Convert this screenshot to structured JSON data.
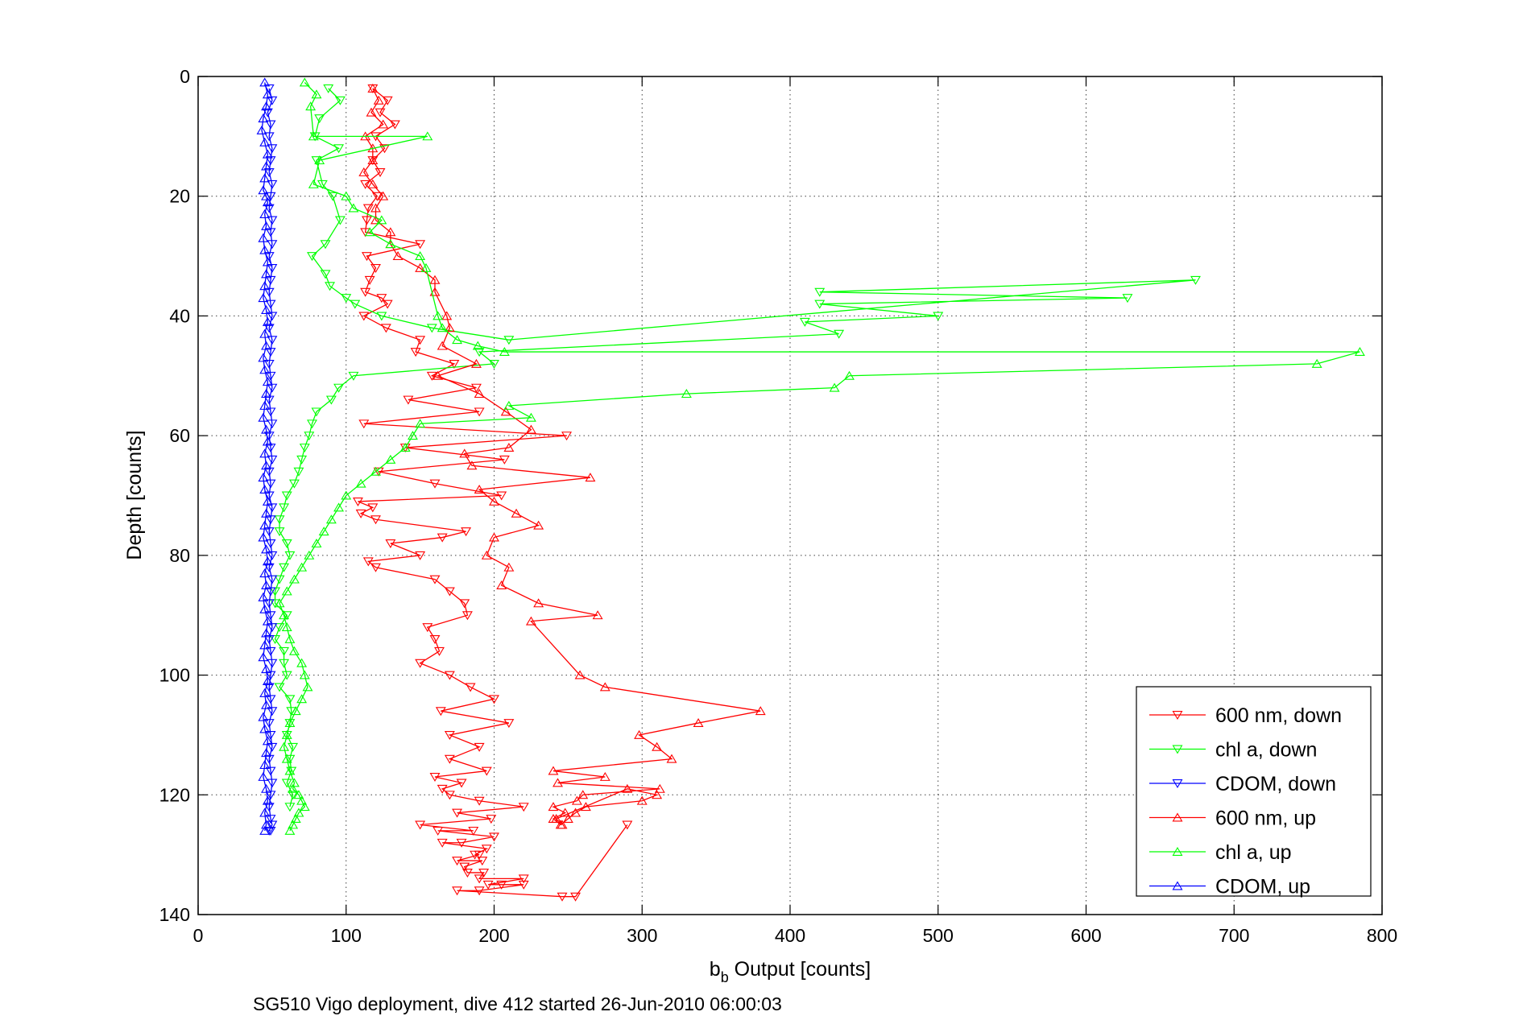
{
  "chart_data": {
    "type": "line",
    "xlabel_main": "b",
    "xlabel_sub": "b",
    "xlabel_rest": " Output [counts]",
    "ylabel": "Depth [counts]",
    "caption": "SG510 Vigo deployment, dive 412 started 26-Jun-2010 06:00:03",
    "xlim": [
      0,
      800
    ],
    "ylim": [
      0,
      140
    ],
    "y_reversed": true,
    "grid": true,
    "legend_position": "bottom-right",
    "x_ticks": [
      "0",
      "100",
      "200",
      "300",
      "400",
      "500",
      "600",
      "700",
      "800"
    ],
    "y_ticks": [
      "0",
      "20",
      "40",
      "60",
      "80",
      "100",
      "120",
      "140"
    ],
    "series": [
      {
        "name": "600 nm, down",
        "color": "#ff0000",
        "marker": "triangle-down",
        "x": [
          118,
          128,
          123,
          133,
          120,
          126,
          118,
          123,
          113,
          121,
          115,
          114,
          113,
          150,
          114,
          120,
          116,
          113,
          124,
          128,
          112,
          127,
          150,
          147,
          173,
          158,
          188,
          142,
          190,
          112,
          249,
          140,
          207,
          122,
          160,
          205,
          108,
          118,
          110,
          120,
          181,
          165,
          130,
          150,
          115,
          120,
          160,
          170,
          180,
          182,
          155,
          160,
          163,
          150,
          170,
          184,
          200,
          164,
          210,
          170,
          190,
          170,
          195,
          160,
          178,
          165,
          170,
          190,
          220,
          175,
          198,
          150,
          186,
          162,
          200,
          178,
          165,
          195,
          187,
          190,
          175,
          192,
          180,
          180,
          182,
          193,
          190,
          220,
          196,
          205,
          220,
          190,
          175,
          246,
          255,
          290
        ],
        "y": [
          2,
          4,
          6,
          8,
          10,
          12,
          14,
          16,
          18,
          20,
          22,
          24,
          26,
          28,
          30,
          32,
          34,
          36,
          37,
          38,
          40,
          42,
          44,
          46,
          48,
          50,
          52,
          54,
          56,
          58,
          60,
          62,
          64,
          66,
          68,
          70,
          71,
          72,
          73,
          74,
          76,
          77,
          78,
          80,
          81,
          82,
          84,
          86,
          88,
          90,
          92,
          94,
          96,
          98,
          100,
          102,
          104,
          106,
          108,
          110,
          112,
          114,
          116,
          117,
          118,
          119,
          120,
          121,
          122,
          123,
          124,
          125,
          126,
          126,
          127,
          128,
          128,
          129,
          130,
          130,
          131,
          131,
          132,
          132,
          133,
          133,
          134,
          134,
          135,
          135,
          135,
          136,
          136,
          137,
          137,
          125
        ]
      },
      {
        "name": "chl a, down",
        "color": "#00ff00",
        "marker": "triangle-down",
        "x": [
          88,
          96,
          82,
          79,
          95,
          80,
          84,
          91,
          96,
          86,
          77,
          86,
          89,
          100,
          106,
          124,
          158,
          210,
          674,
          420,
          628,
          420,
          500,
          410,
          433,
          190,
          200,
          105,
          95,
          90,
          80,
          77,
          75,
          72,
          70,
          68,
          65,
          60,
          58,
          55,
          55,
          60,
          62,
          58,
          55,
          52,
          52,
          60,
          55,
          52,
          58,
          58,
          60,
          55,
          62,
          63,
          62,
          60,
          64,
          62,
          63,
          60,
          64,
          62
        ],
        "y": [
          2,
          4,
          7,
          10,
          12,
          14,
          18,
          20,
          24,
          28,
          30,
          33,
          35,
          37,
          38,
          40,
          42,
          44,
          34,
          36,
          37,
          38,
          40,
          41,
          43,
          46,
          48,
          50,
          52,
          54,
          56,
          58,
          60,
          62,
          64,
          66,
          68,
          70,
          72,
          74,
          76,
          78,
          80,
          82,
          84,
          86,
          88,
          90,
          92,
          94,
          96,
          98,
          100,
          102,
          104,
          106,
          108,
          110,
          112,
          114,
          116,
          118,
          120,
          122
        ]
      },
      {
        "name": "CDOM, down",
        "color": "#0000ff",
        "marker": "triangle-down",
        "x": [
          48,
          50,
          47,
          49,
          48,
          50,
          49,
          48,
          50,
          49,
          48,
          50,
          49,
          50,
          48,
          50,
          49,
          48,
          49,
          50,
          48,
          50,
          49,
          48,
          49,
          50,
          48,
          49,
          50,
          48,
          49,
          50,
          48,
          49,
          48,
          50,
          49,
          48,
          49,
          50,
          48,
          50,
          49,
          48,
          49,
          50,
          48,
          49,
          50,
          49,
          48,
          49,
          50,
          48,
          49,
          50,
          48,
          49,
          50,
          49,
          48,
          49,
          50,
          48,
          49
        ],
        "y": [
          2,
          4,
          6,
          8,
          10,
          12,
          14,
          16,
          18,
          20,
          22,
          24,
          26,
          28,
          30,
          32,
          34,
          36,
          38,
          40,
          42,
          44,
          46,
          48,
          50,
          52,
          54,
          56,
          58,
          60,
          62,
          64,
          66,
          68,
          70,
          72,
          74,
          76,
          78,
          80,
          82,
          84,
          86,
          88,
          90,
          92,
          94,
          96,
          98,
          100,
          102,
          104,
          106,
          108,
          110,
          112,
          114,
          116,
          118,
          120,
          122,
          124,
          125,
          126,
          126
        ]
      },
      {
        "name": "600 nm, up",
        "color": "#ff0000",
        "marker": "triangle-up",
        "x": [
          118,
          122,
          117,
          125,
          113,
          118,
          118,
          112,
          118,
          125,
          120,
          120,
          130,
          130,
          135,
          150,
          160,
          160,
          168,
          170,
          165,
          188,
          162,
          190,
          208,
          225,
          210,
          180,
          185,
          265,
          190,
          200,
          215,
          230,
          200,
          195,
          210,
          205,
          230,
          270,
          225,
          258,
          275,
          380,
          338,
          298,
          310,
          320,
          240,
          275,
          243,
          312,
          260,
          256,
          240,
          248,
          240,
          245,
          250,
          255,
          262,
          300,
          310,
          290,
          242,
          246
        ],
        "y": [
          2,
          4,
          6,
          8,
          10,
          12,
          14,
          16,
          18,
          20,
          22,
          24,
          26,
          28,
          30,
          32,
          34,
          36,
          40,
          42,
          45,
          48,
          50,
          53,
          56,
          59,
          62,
          63,
          65,
          67,
          69,
          71,
          73,
          75,
          77,
          80,
          82,
          85,
          88,
          90,
          91,
          100,
          102,
          106,
          108,
          110,
          112,
          114,
          116,
          117,
          118,
          119,
          120,
          121,
          122,
          123,
          124,
          125,
          124,
          123,
          122,
          121,
          120,
          119,
          124,
          125
        ]
      },
      {
        "name": "chl a, up",
        "color": "#00ff00",
        "marker": "triangle-up",
        "x": [
          72,
          80,
          76,
          78,
          155,
          82,
          78,
          100,
          105,
          124,
          116,
          130,
          150,
          154,
          162,
          165,
          175,
          189,
          207,
          785,
          756,
          440,
          430,
          330,
          210,
          225,
          150,
          145,
          140,
          130,
          120,
          110,
          100,
          95,
          90,
          85,
          80,
          75,
          70,
          65,
          60,
          55,
          58,
          60,
          62,
          65,
          70,
          72,
          74,
          70,
          66,
          62,
          60,
          58,
          60,
          62,
          65,
          64,
          68,
          70,
          72,
          68,
          66,
          64,
          62
        ],
        "y": [
          1,
          3,
          5,
          10,
          10,
          14,
          18,
          20,
          22,
          24,
          26,
          28,
          30,
          32,
          40,
          42,
          44,
          45,
          46,
          46,
          48,
          50,
          52,
          53,
          55,
          57,
          58,
          60,
          62,
          64,
          66,
          68,
          70,
          72,
          74,
          76,
          78,
          80,
          82,
          84,
          86,
          88,
          90,
          92,
          94,
          96,
          98,
          100,
          102,
          104,
          106,
          108,
          110,
          112,
          114,
          116,
          118,
          119,
          120,
          121,
          122,
          123,
          124,
          125,
          126
        ]
      },
      {
        "name": "CDOM, up",
        "color": "#0000ff",
        "marker": "triangle-up",
        "x": [
          45,
          47,
          46,
          44,
          43,
          45,
          47,
          46,
          45,
          44,
          46,
          47,
          45,
          46,
          44,
          45,
          47,
          46,
          45,
          44,
          46,
          47,
          45,
          46,
          44,
          45,
          47,
          46,
          45,
          44,
          46,
          47,
          45,
          46,
          44,
          45,
          47,
          46,
          45,
          44,
          46,
          47,
          45,
          46,
          44,
          45,
          47,
          46,
          45,
          44,
          46,
          47,
          45,
          46,
          44,
          45,
          47,
          46,
          45,
          44,
          46,
          47,
          45,
          46,
          45
        ],
        "y": [
          1,
          3,
          5,
          7,
          9,
          11,
          13,
          15,
          17,
          19,
          20,
          21,
          23,
          25,
          27,
          29,
          31,
          33,
          35,
          37,
          39,
          41,
          43,
          45,
          47,
          49,
          51,
          53,
          55,
          57,
          59,
          61,
          63,
          65,
          67,
          69,
          71,
          73,
          75,
          77,
          79,
          81,
          83,
          85,
          87,
          89,
          91,
          93,
          95,
          97,
          99,
          101,
          103,
          105,
          107,
          109,
          111,
          113,
          115,
          117,
          119,
          121,
          123,
          125,
          126
        ]
      }
    ]
  }
}
